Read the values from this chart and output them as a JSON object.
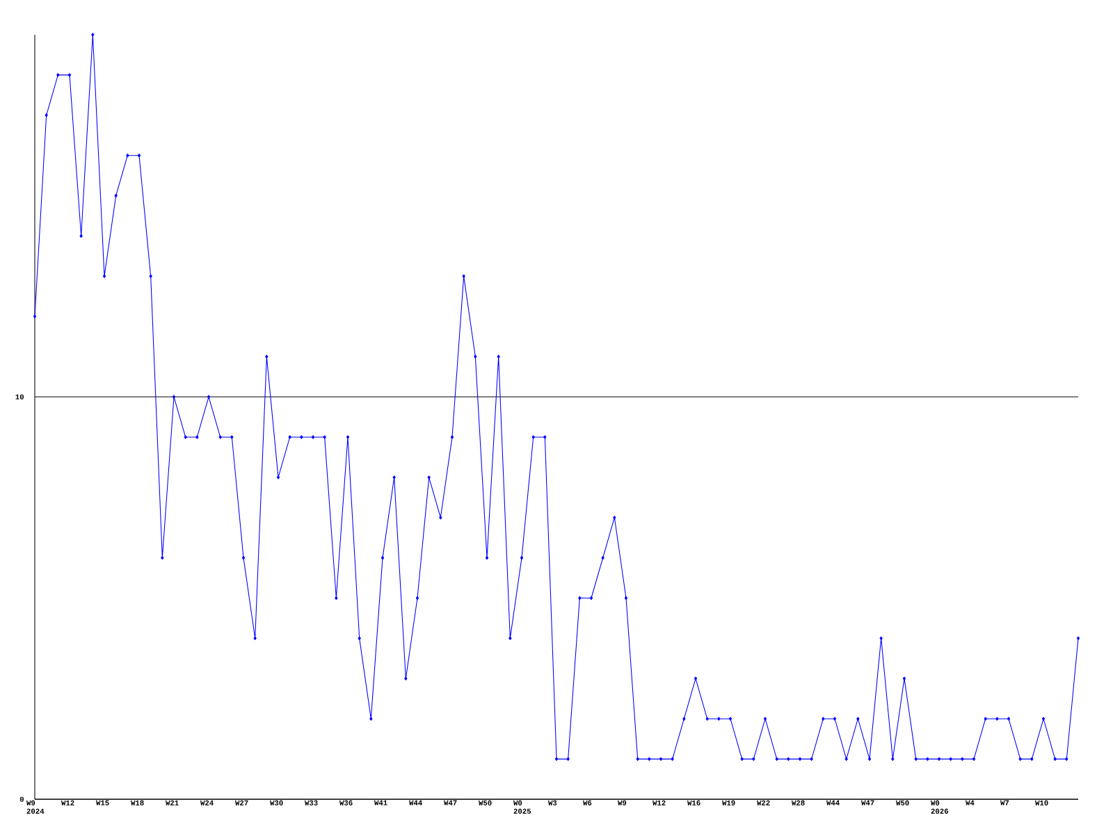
{
  "chart_data": {
    "type": "line",
    "categories": [
      "W9 2024",
      null,
      null,
      "W12",
      null,
      null,
      "W15",
      null,
      null,
      "W18",
      null,
      null,
      "W21",
      null,
      null,
      "W24",
      null,
      null,
      "W27",
      null,
      null,
      "W30",
      null,
      null,
      "W33",
      null,
      null,
      "W36",
      null,
      null,
      "W41",
      null,
      null,
      "W44",
      null,
      null,
      "W47",
      null,
      null,
      "W50",
      null,
      null,
      "W0 2025",
      null,
      null,
      "W3",
      null,
      null,
      "W6",
      null,
      null,
      "W9",
      null,
      null,
      "W12",
      null,
      null,
      "W16",
      null,
      null,
      "W19",
      null,
      null,
      "W22",
      null,
      null,
      "W28",
      null,
      null,
      "W44",
      null,
      null,
      "W47",
      null,
      null,
      "W50",
      null,
      null,
      "W0 2026",
      null,
      null,
      "W4",
      null,
      null,
      "W7",
      null,
      null,
      "W10",
      null,
      null,
      null
    ],
    "values": [
      12,
      17,
      18,
      18,
      14,
      19,
      13,
      15,
      16,
      16,
      13,
      6,
      10,
      9,
      9,
      10,
      9,
      9,
      6,
      4,
      11,
      8,
      9,
      9,
      9,
      9,
      5,
      9,
      4,
      2,
      6,
      8,
      3,
      5,
      8,
      7,
      9,
      13,
      11,
      6,
      11,
      4,
      6,
      9,
      9,
      1,
      1,
      5,
      5,
      6,
      7,
      5,
      1,
      1,
      1,
      1,
      2,
      3,
      2,
      2,
      2,
      1,
      1,
      2,
      1,
      1,
      1,
      1,
      2,
      2,
      1,
      2,
      1,
      4,
      1,
      3,
      1,
      1,
      1,
      1,
      1,
      1,
      2,
      2,
      2,
      1,
      1,
      2,
      1,
      1,
      4
    ],
    "color": "#0000ff",
    "marker": "diamond",
    "grid": "y",
    "ylim": [
      0,
      19
    ],
    "yticks": [
      0,
      10
    ]
  }
}
